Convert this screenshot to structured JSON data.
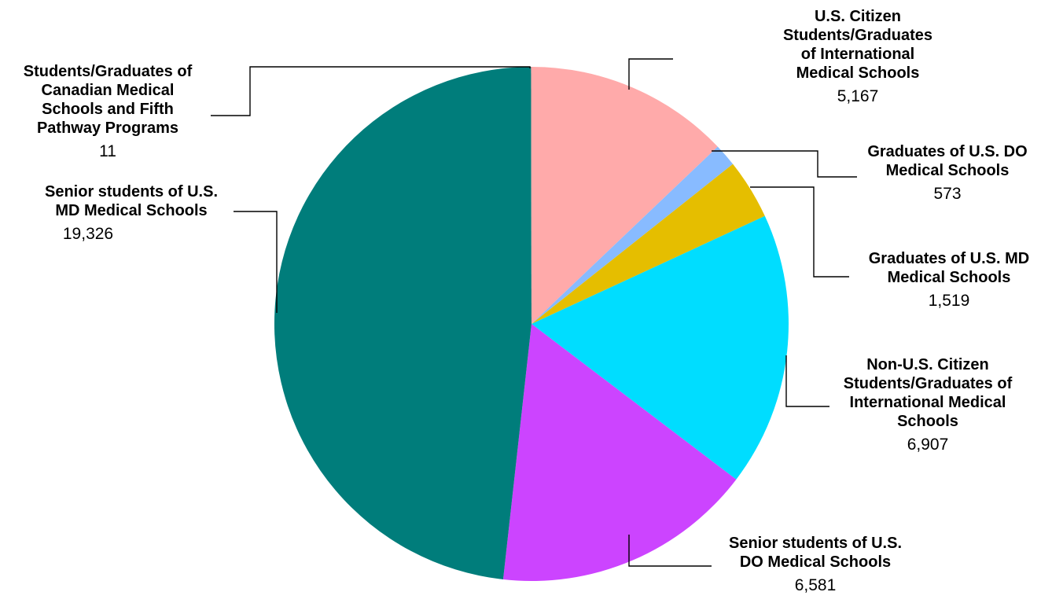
{
  "chart_data": {
    "type": "pie",
    "title": "",
    "start_angle_deg": 0,
    "direction": "clockwise",
    "slices": [
      {
        "label": "U.S. Citizen Students/Graduates of International Medical Schools",
        "label_lines": [
          "U.S. Citizen",
          "Students/Graduates",
          "of International",
          "Medical Schools"
        ],
        "value": 5167,
        "display": "5,167",
        "color": "#FFAAAA"
      },
      {
        "label": "Graduates of U.S. DO Medical Schools",
        "label_lines": [
          "Graduates of U.S. DO",
          "Medical Schools"
        ],
        "value": 573,
        "display": "573",
        "color": "#88BBFF"
      },
      {
        "label": "Graduates of U.S. MD Medical Schools",
        "label_lines": [
          "Graduates of U.S. MD",
          "Medical Schools"
        ],
        "value": 1519,
        "display": "1,519",
        "color": "#E5BE00"
      },
      {
        "label": "Non-U.S. Citizen Students/Graduates of International Medical Schools",
        "label_lines": [
          "Non-U.S. Citizen",
          "Students/Graduates of",
          "International Medical",
          "Schools"
        ],
        "value": 6907,
        "display": "6,907",
        "color": "#00DDFF"
      },
      {
        "label": "Senior students of U.S. DO Medical Schools",
        "label_lines": [
          "Senior students of U.S.",
          "DO Medical Schools"
        ],
        "value": 6581,
        "display": "6,581",
        "color": "#CC44FF"
      },
      {
        "label": "Senior students of U.S. MD Medical Schools",
        "label_lines": [
          "Senior students of U.S.",
          "MD Medical Schools"
        ],
        "value": 19326,
        "display": "19,326",
        "color": "#007D7B"
      },
      {
        "label": "Students/Graduates of Canadian Medical Schools and Fifth Pathway Programs",
        "label_lines": [
          "Students/Graduates of",
          "Canadian Medical",
          "Schools and Fifth",
          "Pathway Programs"
        ],
        "value": 11,
        "display": "11",
        "color": "#FFAAAA"
      }
    ]
  }
}
